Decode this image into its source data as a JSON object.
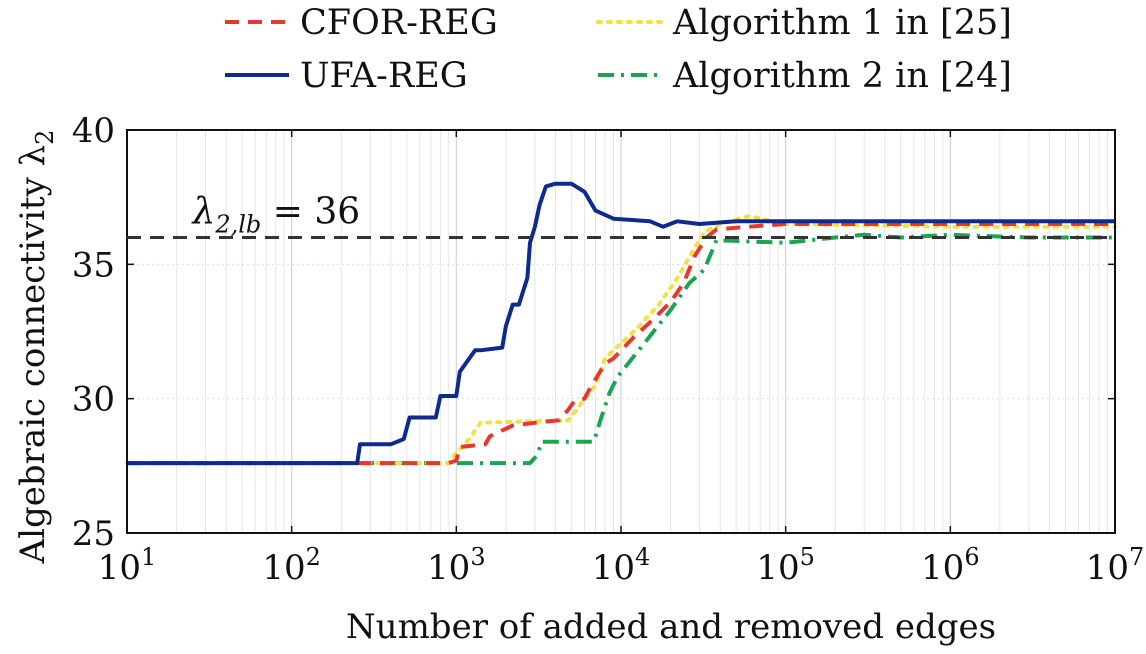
{
  "chart_data": {
    "type": "line",
    "title": "",
    "xlabel": "Number of added and removed edges",
    "ylabel": "Algebraic connectivity λ",
    "ylabel_subscript": "2",
    "x_scale": "log",
    "xlim": [
      10,
      10000000
    ],
    "ylim": [
      25,
      40
    ],
    "grid": true,
    "legend_position": "top",
    "x_ticks": [
      10,
      100,
      1000,
      10000,
      100000,
      1000000,
      10000000
    ],
    "x_tick_labels": [
      {
        "base": "10",
        "exp": "1"
      },
      {
        "base": "10",
        "exp": "2"
      },
      {
        "base": "10",
        "exp": "3"
      },
      {
        "base": "10",
        "exp": "4"
      },
      {
        "base": "10",
        "exp": "5"
      },
      {
        "base": "10",
        "exp": "6"
      },
      {
        "base": "10",
        "exp": "7"
      }
    ],
    "y_ticks": [
      25,
      30,
      35,
      40
    ],
    "y_tick_labels": [
      "25",
      "30",
      "35",
      "40"
    ],
    "annotations": [
      {
        "text_main": "λ",
        "text_sub": "2,lb",
        "text_rest": " = 36",
        "y": 36,
        "x": 25
      }
    ],
    "series": [
      {
        "name": "CFOR-REG",
        "color": "#e8382e",
        "dash": "dashed",
        "x": [
          10,
          900,
          1000,
          1050,
          1500,
          1600,
          2200,
          3000,
          4200,
          4800,
          5200,
          6000,
          6500,
          8000,
          9000,
          12000,
          16000,
          20000,
          24000,
          28000,
          33000,
          38000,
          60000,
          100000,
          1000000,
          10000000
        ],
        "y": [
          27.6,
          27.6,
          27.7,
          28.2,
          28.3,
          28.6,
          29.0,
          29.1,
          29.2,
          29.6,
          29.9,
          30.0,
          30.4,
          31.3,
          31.5,
          32.3,
          33.0,
          33.6,
          34.3,
          35.3,
          36.0,
          36.3,
          36.4,
          36.5,
          36.5,
          36.5
        ]
      },
      {
        "name": "UFA-REG",
        "color": "#0d2b8e",
        "dash": "solid",
        "x": [
          10,
          250,
          260,
          400,
          480,
          520,
          750,
          800,
          1000,
          1050,
          1300,
          1400,
          1900,
          2000,
          2200,
          2400,
          2700,
          2800,
          3000,
          3200,
          3500,
          4000,
          5000,
          6000,
          7000,
          9000,
          15000,
          18000,
          22000,
          30000,
          50000,
          100000,
          300000,
          1000000,
          3000000,
          10000000
        ],
        "y": [
          27.6,
          27.6,
          28.3,
          28.3,
          28.5,
          29.3,
          29.3,
          30.1,
          30.1,
          31.0,
          31.8,
          31.8,
          31.9,
          32.7,
          33.5,
          33.5,
          34.5,
          35.8,
          36.4,
          37.2,
          37.9,
          38.0,
          38.0,
          37.7,
          37.0,
          36.7,
          36.6,
          36.4,
          36.6,
          36.5,
          36.6,
          36.6,
          36.6,
          36.6,
          36.6,
          36.6
        ]
      },
      {
        "name": "Algorithm 1 in [25]",
        "color": "#f5e042",
        "dash": "dotted",
        "x": [
          10,
          900,
          1000,
          1200,
          1400,
          4800,
          5400,
          6000,
          7000,
          8000,
          9000,
          12000,
          17000,
          22000,
          28000,
          32000,
          40000,
          60000,
          100000,
          1000000,
          10000000
        ],
        "y": [
          27.6,
          27.6,
          28.0,
          28.5,
          29.1,
          29.2,
          29.6,
          30.0,
          30.5,
          31.5,
          31.8,
          32.5,
          33.5,
          34.5,
          35.6,
          36.2,
          36.5,
          36.8,
          36.5,
          36.4,
          36.4
        ]
      },
      {
        "name": "Algorithm 2 in [24]",
        "color": "#19a551",
        "dash": "dashdot",
        "x": [
          10,
          2800,
          3100,
          3300,
          6800,
          7000,
          7500,
          8500,
          9500,
          14000,
          20000,
          26000,
          32000,
          38000,
          100000,
          200000,
          300000,
          500000,
          1000000,
          3000000,
          10000000
        ],
        "y": [
          27.6,
          27.6,
          27.9,
          28.4,
          28.4,
          28.6,
          29.2,
          30.2,
          30.8,
          32.1,
          33.3,
          34.3,
          34.8,
          35.9,
          35.8,
          36.0,
          36.1,
          36.0,
          36.1,
          36.0,
          36.0
        ]
      }
    ]
  }
}
